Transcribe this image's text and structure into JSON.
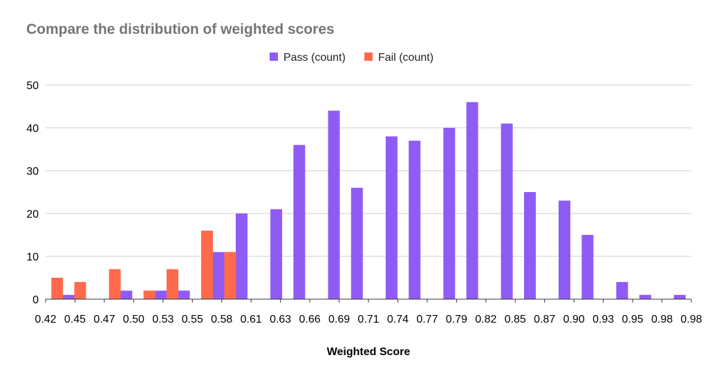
{
  "chart_data": {
    "type": "bar",
    "title": "Compare the distribution of weighted scores",
    "xlabel": "Weighted Score",
    "ylabel": "",
    "ylim": [
      0,
      50
    ],
    "yticks": [
      "0",
      "10",
      "20",
      "30",
      "40",
      "50"
    ],
    "xlim": [
      0.42,
      0.98
    ],
    "xticks": [
      "0.42",
      "0.45",
      "0.47",
      "0.50",
      "0.53",
      "0.55",
      "0.58",
      "0.61",
      "0.63",
      "0.66",
      "0.69",
      "0.71",
      "0.74",
      "0.77",
      "0.79",
      "0.82",
      "0.85",
      "0.87",
      "0.90",
      "0.93",
      "0.95",
      "0.98",
      "0.98"
    ],
    "grid": true,
    "legend_position": "top",
    "series": [
      {
        "name": "Pass (count)",
        "color": "#8e5cf5",
        "x": [
          0.44,
          0.49,
          0.52,
          0.54,
          0.57,
          0.59,
          0.62,
          0.64,
          0.67,
          0.69,
          0.72,
          0.74,
          0.77,
          0.79,
          0.82,
          0.84,
          0.87,
          0.89,
          0.92,
          0.94,
          0.97
        ],
        "values": [
          1,
          2,
          2,
          2,
          11,
          20,
          21,
          36,
          44,
          26,
          38,
          37,
          40,
          46,
          41,
          25,
          23,
          15,
          4,
          1,
          1
        ]
      },
      {
        "name": "Fail (count)",
        "color": "#ff6a4d",
        "x": [
          0.43,
          0.45,
          0.48,
          0.51,
          0.53,
          0.56,
          0.58
        ],
        "values": [
          5,
          4,
          7,
          2,
          7,
          16,
          11
        ]
      }
    ]
  }
}
